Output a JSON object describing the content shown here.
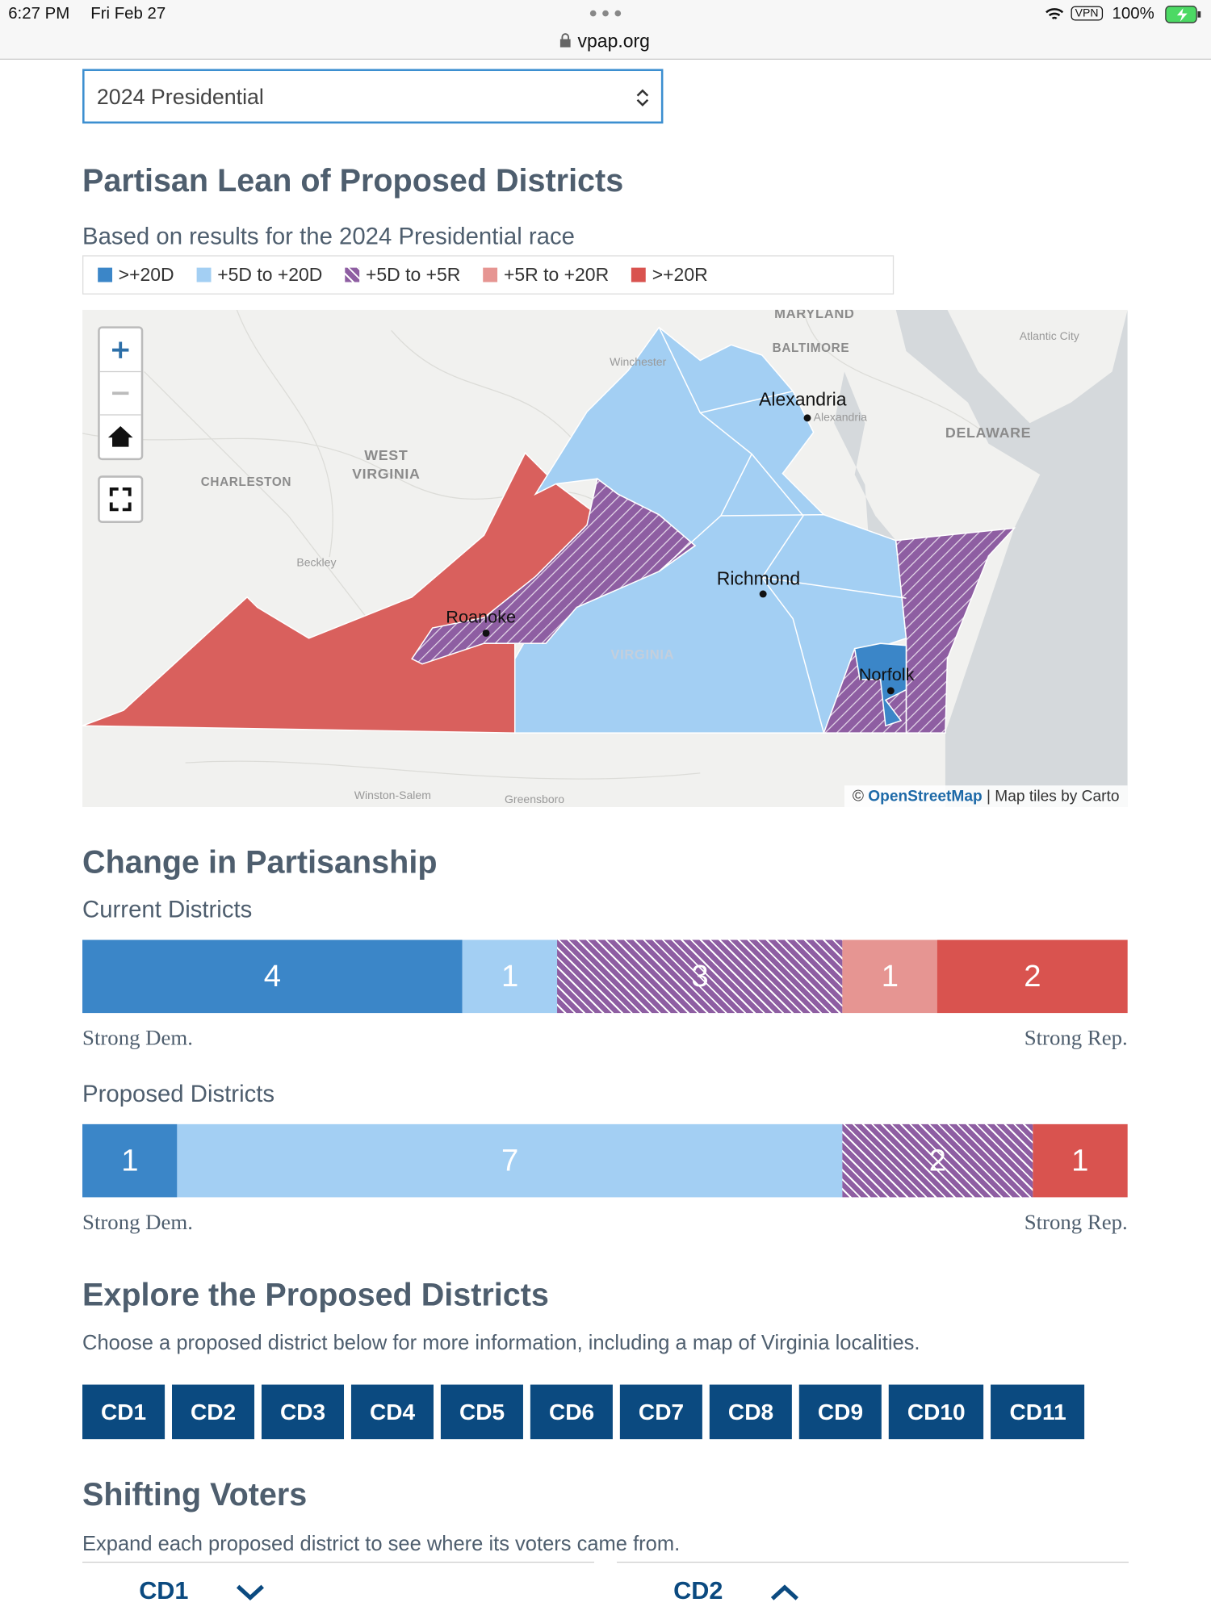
{
  "status_bar": {
    "time": "6:27 PM",
    "date": "Fri Feb 27",
    "url": "vpap.org",
    "vpn": "VPN",
    "battery": "100%"
  },
  "selector": {
    "value": "2024 Presidential"
  },
  "lean_section": {
    "title": "Partisan Lean of Proposed Districts",
    "subtitle": "Based on results for the 2024 Presidential race",
    "legend": [
      {
        "label": ">+20D",
        "color": "#3b86c8"
      },
      {
        "label": "+5D to +20D",
        "color": "#a3cff3"
      },
      {
        "label": "+5D to +5R",
        "color": "#8e5ea2",
        "hatch": true
      },
      {
        "label": "+5R to +20R",
        "color": "#e69592"
      },
      {
        "label": ">+20R",
        "color": "#d9534f"
      }
    ]
  },
  "map": {
    "labels": [
      "MARYLAND",
      "BALTIMORE",
      "Atlantic City",
      "Winchester",
      "Alexandria",
      "Alexandria",
      "DELAWARE",
      "WEST VIRGINIA",
      "CHARLESTON",
      "Beckley",
      "Richmond",
      "Roanoke",
      "Norfolk",
      "VIRGINIA",
      "Winston-Salem",
      "Greensboro"
    ],
    "attribution": {
      "copyright": "©",
      "link": "OpenStreetMap",
      "text": "| Map tiles by Carto"
    }
  },
  "change_section": {
    "title": "Change in Partisanship",
    "bars": [
      {
        "name": "Current Districts",
        "left_label": "Strong Dem.",
        "right_label": "Strong Rep.",
        "segments": [
          {
            "value": 4,
            "color": "#3b86c8"
          },
          {
            "value": 1,
            "color": "#a3cff3"
          },
          {
            "value": 3,
            "color": "#8e5ea2",
            "hatch": true
          },
          {
            "value": 1,
            "color": "#e69592"
          },
          {
            "value": 2,
            "color": "#d9534f"
          }
        ]
      },
      {
        "name": "Proposed Districts",
        "left_label": "Strong Dem.",
        "right_label": "Strong Rep.",
        "segments": [
          {
            "value": 1,
            "color": "#3b86c8"
          },
          {
            "value": 7,
            "color": "#a3cff3"
          },
          {
            "value": 2,
            "color": "#8e5ea2",
            "hatch": true
          },
          {
            "value": 1,
            "color": "#d9534f"
          }
        ]
      }
    ]
  },
  "explore": {
    "title": "Explore the Proposed Districts",
    "description": "Choose a proposed district below for more information, including a map of Virginia localities.",
    "buttons": [
      "CD1",
      "CD2",
      "CD3",
      "CD4",
      "CD5",
      "CD6",
      "CD7",
      "CD8",
      "CD9",
      "CD10",
      "CD11"
    ]
  },
  "shifting": {
    "title": "Shifting Voters",
    "description": "Expand each proposed district to see where its voters came from.",
    "accordions": [
      "CD1",
      "CD2"
    ]
  }
}
